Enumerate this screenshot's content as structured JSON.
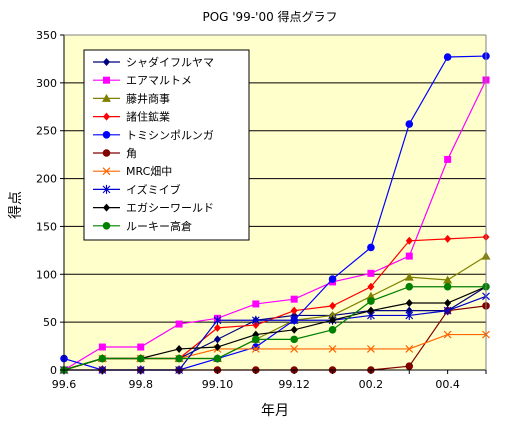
{
  "chart_data": {
    "type": "line",
    "title": "POG '99-'00 得点グラフ",
    "xlabel": "年月",
    "ylabel": "得点",
    "ylim": [
      0,
      350
    ],
    "yticks": [
      0,
      50,
      100,
      150,
      200,
      250,
      300,
      350
    ],
    "x": [
      "99.6",
      "99.7",
      "99.8",
      "99.9",
      "99.10",
      "99.11",
      "99.12",
      "00.1",
      "00.2",
      "00.3",
      "00.4",
      "00.5"
    ],
    "xtick_labels": [
      "99.6",
      "",
      "99.8",
      "",
      "99.10",
      "",
      "99.12",
      "",
      "00.2",
      "",
      "00.4",
      ""
    ],
    "grid": "horizontal",
    "plot_background": "#ffffcc",
    "legend_position": "top-left inside",
    "series": [
      {
        "name": "シャダイフルヤマ",
        "color": "#000080",
        "marker": "diamond",
        "values": [
          0,
          12,
          12,
          12,
          32,
          52,
          57,
          57,
          62,
          62,
          62,
          87
        ]
      },
      {
        "name": "エアマルトメ",
        "color": "#ff00ff",
        "marker": "square",
        "values": [
          0,
          24,
          24,
          48,
          54,
          69,
          74,
          92,
          101,
          119,
          220,
          303
        ]
      },
      {
        "name": "藤井商事",
        "color": "#808000",
        "marker": "triangle",
        "values": [
          0,
          12,
          12,
          12,
          12,
          32,
          52,
          57,
          77,
          97,
          94,
          119
        ]
      },
      {
        "name": "諸住鉱業",
        "color": "#ff0000",
        "marker": "diamond",
        "values": [
          0,
          12,
          12,
          12,
          44,
          47,
          62,
          67,
          87,
          135,
          137,
          139
        ]
      },
      {
        "name": "トミシンポルンガ",
        "color": "#0000ff",
        "marker": "circle",
        "values": [
          12,
          0,
          0,
          0,
          12,
          24,
          52,
          95,
          128,
          257,
          327,
          328
        ]
      },
      {
        "name": "角",
        "color": "#800000",
        "marker": "circle",
        "values": [
          0,
          0,
          0,
          0,
          0,
          0,
          0,
          0,
          0,
          4,
          62,
          67
        ]
      },
      {
        "name": "MRC畑中",
        "color": "#ff6600",
        "marker": "x",
        "values": [
          0,
          12,
          12,
          12,
          22,
          22,
          22,
          22,
          22,
          22,
          37,
          37
        ]
      },
      {
        "name": "イズミイブ",
        "color": "#0000cc",
        "marker": "star",
        "values": [
          0,
          0,
          0,
          0,
          52,
          52,
          52,
          52,
          57,
          57,
          62,
          77
        ]
      },
      {
        "name": "エガシーワールド",
        "color": "#000000",
        "marker": "diamond",
        "values": [
          0,
          12,
          12,
          22,
          24,
          37,
          42,
          52,
          62,
          70,
          70,
          87
        ]
      },
      {
        "name": "ルーキー高倉",
        "color": "#008000",
        "marker": "circle",
        "values": [
          0,
          12,
          12,
          12,
          12,
          32,
          32,
          42,
          72,
          87,
          87,
          87
        ]
      }
    ]
  }
}
